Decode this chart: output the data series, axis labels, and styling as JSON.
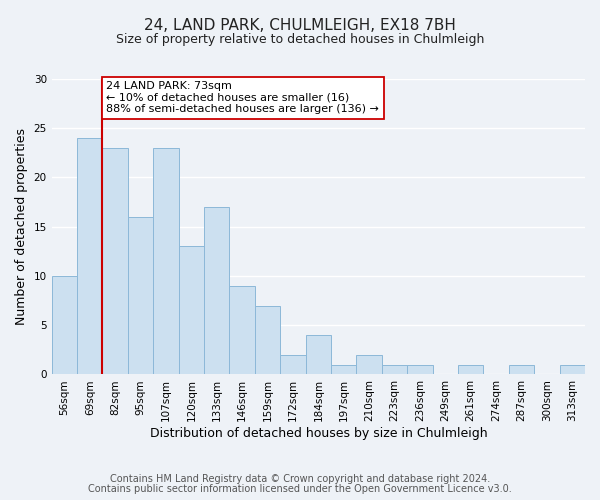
{
  "title": "24, LAND PARK, CHULMLEIGH, EX18 7BH",
  "subtitle": "Size of property relative to detached houses in Chulmleigh",
  "xlabel": "Distribution of detached houses by size in Chulmleigh",
  "ylabel": "Number of detached properties",
  "bin_labels": [
    "56sqm",
    "69sqm",
    "82sqm",
    "95sqm",
    "107sqm",
    "120sqm",
    "133sqm",
    "146sqm",
    "159sqm",
    "172sqm",
    "184sqm",
    "197sqm",
    "210sqm",
    "223sqm",
    "236sqm",
    "249sqm",
    "261sqm",
    "274sqm",
    "287sqm",
    "300sqm",
    "313sqm"
  ],
  "bar_heights": [
    10,
    24,
    23,
    16,
    23,
    13,
    17,
    9,
    7,
    2,
    4,
    1,
    2,
    1,
    1,
    0,
    1,
    0,
    1,
    0,
    1
  ],
  "bar_color": "#cce0f0",
  "bar_edge_color": "#8cb8d8",
  "vline_color": "#cc0000",
  "vline_x_index": 1,
  "annotation_text": "24 LAND PARK: 73sqm\n← 10% of detached houses are smaller (16)\n88% of semi-detached houses are larger (136) →",
  "annotation_box_facecolor": "#ffffff",
  "annotation_box_edgecolor": "#cc0000",
  "ylim": [
    0,
    30
  ],
  "yticks": [
    0,
    5,
    10,
    15,
    20,
    25,
    30
  ],
  "bg_color": "#eef2f7",
  "plot_bg_color": "#eef2f7",
  "grid_color": "#ffffff",
  "title_fontsize": 11,
  "subtitle_fontsize": 9,
  "axis_label_fontsize": 9,
  "tick_fontsize": 7.5,
  "annotation_fontsize": 8,
  "footer_fontsize": 7,
  "footer_line1": "Contains HM Land Registry data © Crown copyright and database right 2024.",
  "footer_line2": "Contains public sector information licensed under the Open Government Licence v3.0."
}
